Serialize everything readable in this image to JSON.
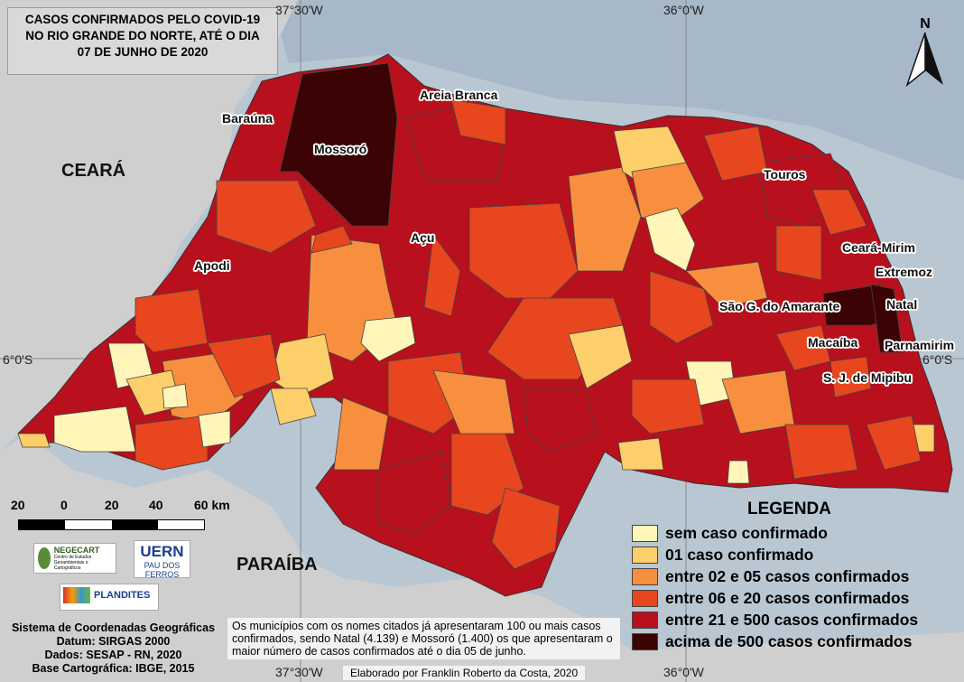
{
  "title": {
    "line1": "CASOS CONFIRMADOS PELO COVID-19",
    "line2": "NO RIO GRANDE DO NORTE, ATÉ O DIA",
    "line3": "07 DE JUNHO DE 2020"
  },
  "coordinates": {
    "lon_top_left": "37°30'W",
    "lon_top_right": "36°0'W",
    "lon_bottom_left": "37°30'W",
    "lon_bottom_right": "36°0'W",
    "lat_left": "6°0'S",
    "lat_right": "6°0'S"
  },
  "north_arrow_label": "N",
  "states": {
    "ceara": "CEARÁ",
    "paraiba": "PARAÍBA"
  },
  "municipalities": {
    "barauna": "Baraúna",
    "mossoro": "Mossoró",
    "areia_branca": "Areia Branca",
    "acu": "Açu",
    "apodi": "Apodi",
    "touros": "Touros",
    "ceara_mirim": "Ceará-Mirim",
    "extremoz": "Extremoz",
    "natal": "Natal",
    "sao_goncalo": "São G. do Amarante",
    "macaiba": "Macaíba",
    "parnamirim": "Parnamirim",
    "sj_mipibu": "S. J. de Mipibu"
  },
  "legend": {
    "title": "LEGENDA",
    "items": [
      {
        "label": "sem caso confirmado",
        "color": "#fff5b8"
      },
      {
        "label": "01 caso confirmado",
        "color": "#fdcf6b"
      },
      {
        "label": "entre 02 e 05 casos confirmados",
        "color": "#f78f3e"
      },
      {
        "label": "entre 06 e 20 casos confirmados",
        "color": "#e8461f"
      },
      {
        "label": "entre 21 e 500 casos confirmados",
        "color": "#b8101c"
      },
      {
        "label": "acima de 500 casos confirmados",
        "color": "#3b0303"
      }
    ]
  },
  "scale": {
    "labels": [
      "20",
      "0",
      "20",
      "40",
      "60 km"
    ]
  },
  "logos": {
    "negecart": "NEGECART",
    "negecart_sub": "Centro de Estudos Geoambientais e Cartográficos",
    "uern": "UERN",
    "uern_sub": "PAU DOS FERROS",
    "plandites": "PLANDITES"
  },
  "info": {
    "line1": "Sistema de Coordenadas Geográficas",
    "line2": "Datum: SIRGAS 2000",
    "line3": "Dados: SESAP - RN, 2020",
    "line4": "Base Cartográfica: IBGE, 2015"
  },
  "note": "Os municípios com os nomes citados já apresentaram 100 ou mais casos confirmados, sendo Natal (4.139) e Mossoró (1.400) os que apresentaram o maior número de casos confirmados até o dia 05 de junho.",
  "credit": "Elaborado por Franklin Roberto da Costa, 2020"
}
